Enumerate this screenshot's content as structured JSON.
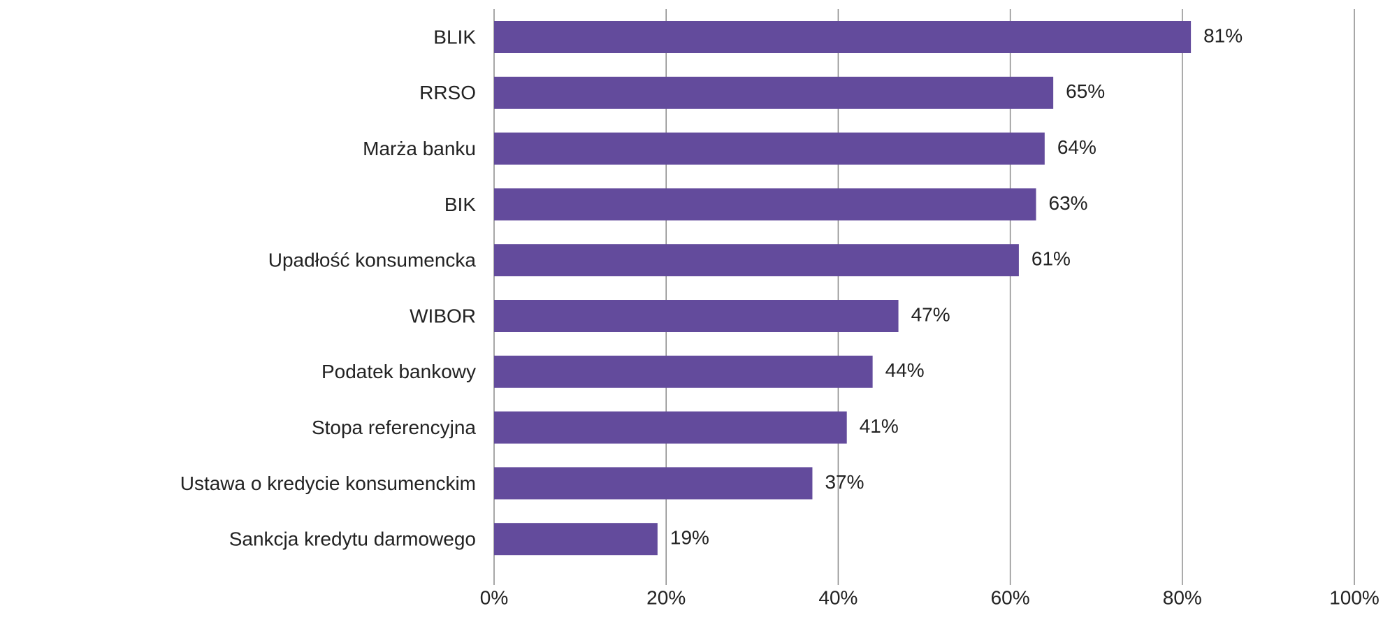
{
  "chart_data": {
    "type": "hbar",
    "categories": [
      "BLIK",
      "RRSO",
      "Marża banku",
      "BIK",
      "Upadłość konsumencka",
      "WIBOR",
      "Podatek bankowy",
      "Stopa referencyjna",
      "Ustawa o kredycie konsumenckim",
      "Sankcja kredytu darmowego"
    ],
    "values": [
      81,
      65,
      64,
      63,
      61,
      47,
      44,
      41,
      37,
      19
    ],
    "value_labels": [
      "81%",
      "65%",
      "64%",
      "63%",
      "61%",
      "47%",
      "44%",
      "41%",
      "37%",
      "19%"
    ],
    "color": "#634b9c",
    "xlim": [
      0,
      100
    ],
    "xticks": [
      {
        "value": 0,
        "label": "0%"
      },
      {
        "value": 20,
        "label": "20%"
      },
      {
        "value": 40,
        "label": "40%"
      },
      {
        "value": 60,
        "label": "60%"
      },
      {
        "value": 80,
        "label": "80%"
      },
      {
        "value": 100,
        "label": "100%"
      }
    ],
    "grid": true
  }
}
